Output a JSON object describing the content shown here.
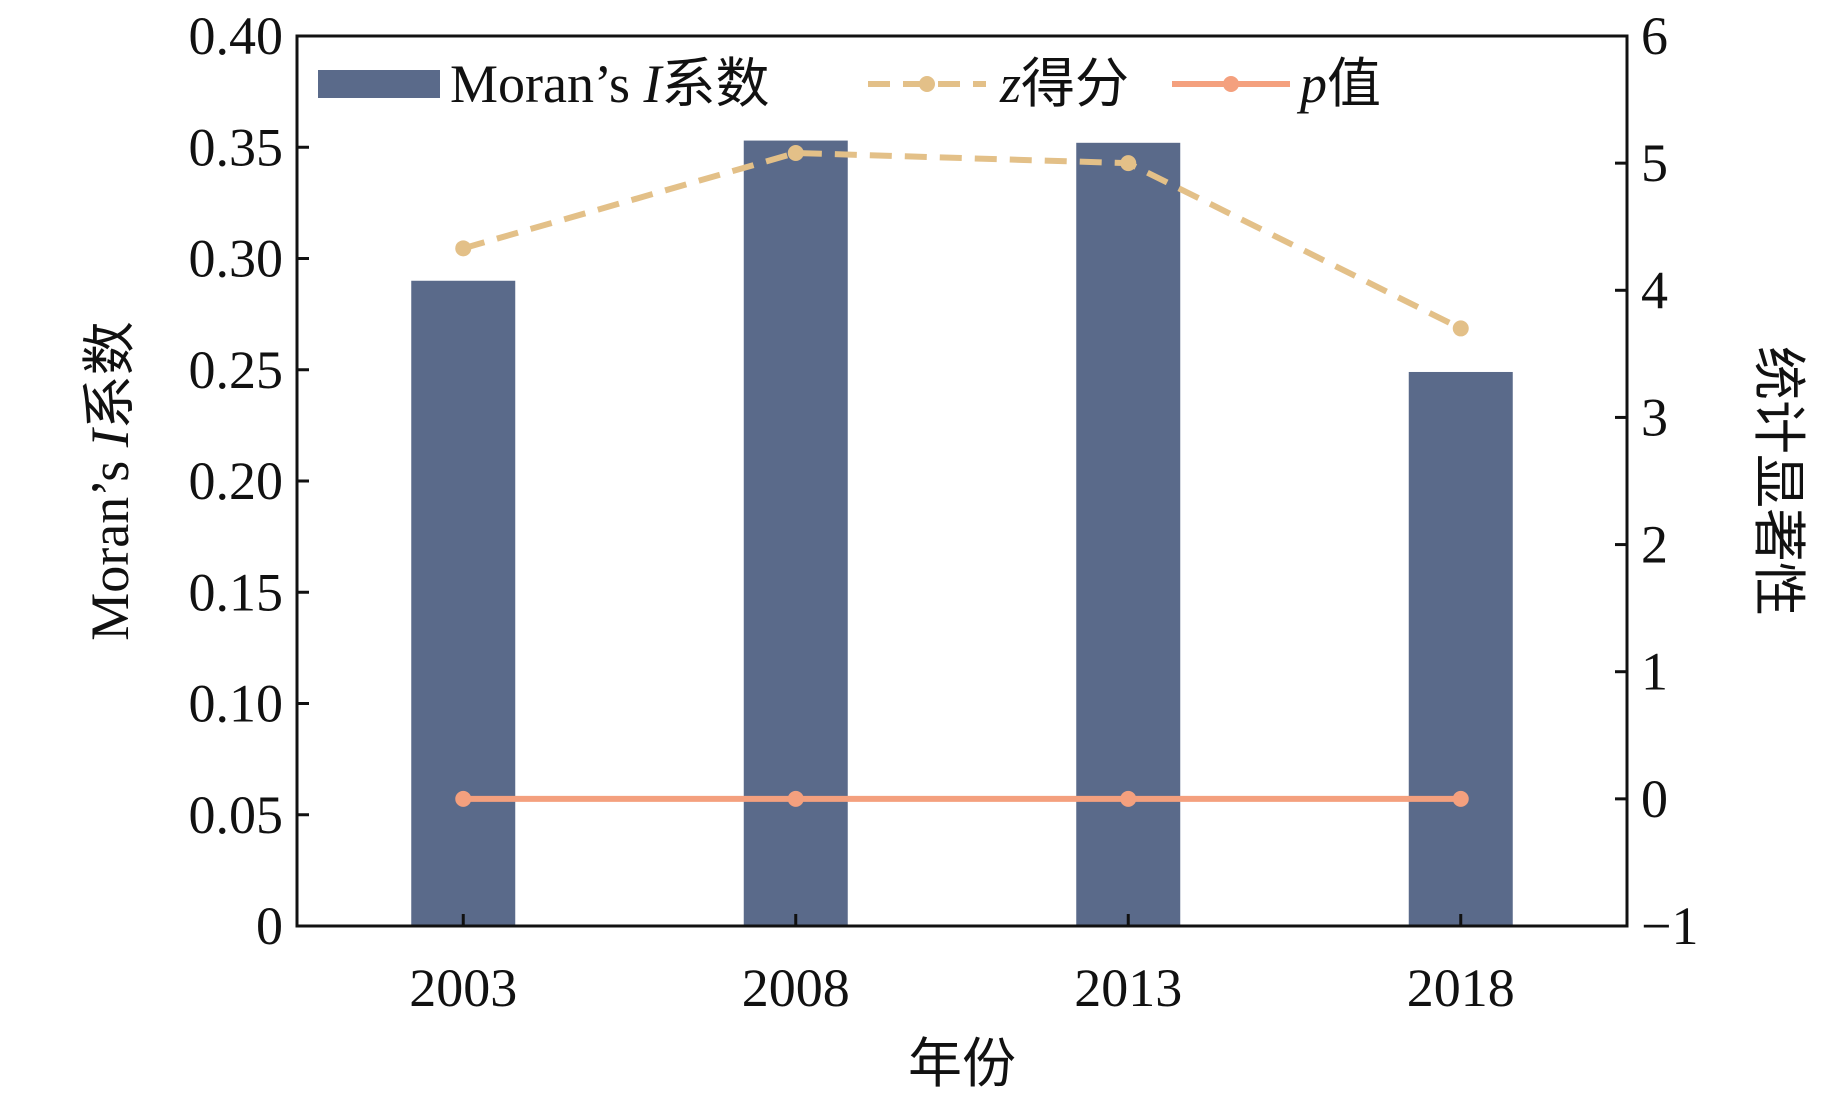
{
  "chart_data": {
    "type": "bar",
    "categories": [
      "2003",
      "2008",
      "2013",
      "2018"
    ],
    "xlabel": "年份",
    "ylabel": "Moran’s I系数",
    "ylabel_parts": {
      "prefix": "Moran’s ",
      "italic": "I",
      "suffix": "系数"
    },
    "y2label": "统计显著性",
    "ylim": [
      0,
      0.4
    ],
    "y2lim": [
      -1,
      6
    ],
    "yticks": [
      "0",
      "0.05",
      "0.10",
      "0.15",
      "0.20",
      "0.25",
      "0.30",
      "0.35",
      "0.40"
    ],
    "y2ticks": [
      "−1",
      "0",
      "1",
      "2",
      "3",
      "4",
      "5",
      "6"
    ],
    "grid": false,
    "legend_position": "top",
    "series": [
      {
        "name": "Moran’s I系数",
        "name_parts": {
          "prefix": "Moran’s ",
          "italic": "I",
          "suffix": "系数"
        },
        "type": "bar",
        "axis": "left",
        "values": [
          0.29,
          0.353,
          0.352,
          0.249
        ],
        "color": "#5a6a8a"
      },
      {
        "name": "z得分",
        "name_parts": {
          "prefix": "",
          "italic": "z",
          "suffix": "得分"
        },
        "type": "line",
        "style": "dashed",
        "axis": "right",
        "values": [
          4.33,
          5.08,
          5.0,
          3.7
        ],
        "color": "#e3c088"
      },
      {
        "name": "p值",
        "name_parts": {
          "prefix": "",
          "italic": "p",
          "suffix": "值"
        },
        "type": "line",
        "style": "solid",
        "axis": "right",
        "values": [
          0.0,
          0.0,
          0.0,
          0.0
        ],
        "color": "#f4a07e"
      }
    ]
  }
}
